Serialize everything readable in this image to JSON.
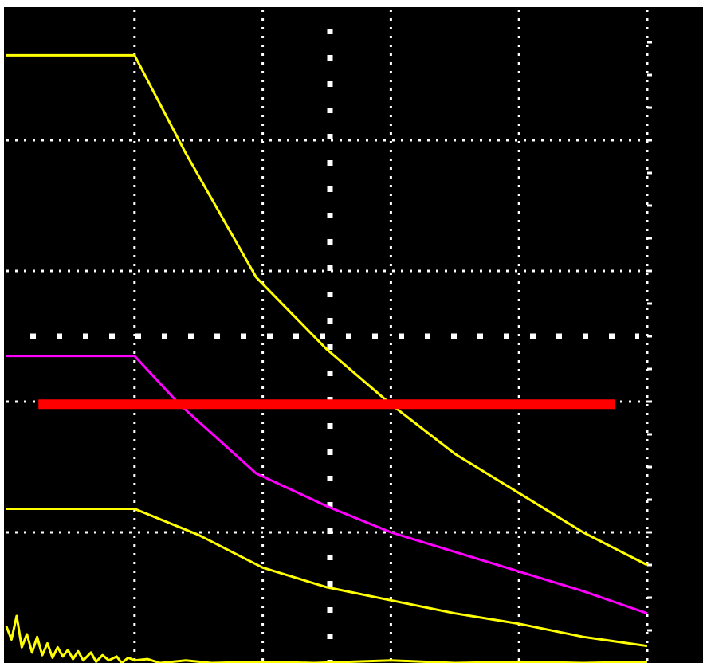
{
  "colors": {
    "background": "#000000",
    "frame": "#ffffff",
    "grid": "#ffffff",
    "upper_envelope": "#ffff00",
    "middle_envelope": "#ff00ff",
    "lower_envelope": "#ffff00",
    "measured_trace": "#ffff00",
    "marker_line": "#ff0000"
  },
  "chart_data": {
    "type": "line",
    "grid": true,
    "grid_divisions": {
      "x": 5,
      "y": 5
    },
    "xlim": [
      0,
      5
    ],
    "ylim": [
      0,
      5
    ],
    "x_unit": "division",
    "y_unit": "division",
    "reference_line": {
      "name": "marker-line",
      "y": 1.98,
      "x_start": 0.25,
      "x_end": 4.75
    },
    "series": [
      {
        "key": "upper-envelope",
        "color": "#ffff00",
        "points": [
          [
            0.0,
            4.65
          ],
          [
            1.0,
            4.65
          ],
          [
            1.4,
            3.9
          ],
          [
            1.95,
            2.95
          ],
          [
            2.5,
            2.4
          ],
          [
            3.0,
            1.98
          ],
          [
            3.5,
            1.6
          ],
          [
            4.0,
            1.3
          ],
          [
            4.5,
            1.0
          ],
          [
            5.0,
            0.75
          ]
        ]
      },
      {
        "key": "middle-envelope",
        "color": "#ff00ff",
        "points": [
          [
            0.0,
            2.35
          ],
          [
            1.0,
            2.35
          ],
          [
            1.35,
            1.98
          ],
          [
            1.95,
            1.45
          ],
          [
            2.5,
            1.2
          ],
          [
            3.0,
            1.0
          ],
          [
            3.5,
            0.85
          ],
          [
            4.0,
            0.7
          ],
          [
            4.5,
            0.55
          ],
          [
            5.0,
            0.38
          ]
        ]
      },
      {
        "key": "lower-envelope",
        "color": "#ffff00",
        "points": [
          [
            0.0,
            1.18
          ],
          [
            1.0,
            1.18
          ],
          [
            1.5,
            0.98
          ],
          [
            2.0,
            0.73
          ],
          [
            2.5,
            0.58
          ],
          [
            3.0,
            0.48
          ],
          [
            3.5,
            0.38
          ],
          [
            4.0,
            0.3
          ],
          [
            4.5,
            0.2
          ],
          [
            5.0,
            0.13
          ]
        ]
      },
      {
        "key": "measured-trace",
        "color": "#ffff00",
        "points": [
          [
            0.0,
            0.28
          ],
          [
            0.04,
            0.18
          ],
          [
            0.08,
            0.36
          ],
          [
            0.12,
            0.12
          ],
          [
            0.16,
            0.22
          ],
          [
            0.2,
            0.08
          ],
          [
            0.24,
            0.2
          ],
          [
            0.28,
            0.06
          ],
          [
            0.32,
            0.15
          ],
          [
            0.36,
            0.04
          ],
          [
            0.4,
            0.12
          ],
          [
            0.44,
            0.05
          ],
          [
            0.48,
            0.1
          ],
          [
            0.52,
            0.03
          ],
          [
            0.56,
            0.09
          ],
          [
            0.6,
            0.02
          ],
          [
            0.66,
            0.08
          ],
          [
            0.7,
            0.01
          ],
          [
            0.75,
            0.06
          ],
          [
            0.8,
            0.02
          ],
          [
            0.86,
            0.05
          ],
          [
            0.9,
            0.0
          ],
          [
            0.95,
            0.04
          ],
          [
            1.0,
            0.02
          ],
          [
            1.1,
            0.03
          ],
          [
            1.2,
            0.0
          ],
          [
            1.4,
            0.02
          ],
          [
            1.6,
            0.0
          ],
          [
            2.0,
            0.01
          ],
          [
            2.4,
            0.0
          ],
          [
            3.0,
            0.02
          ],
          [
            3.5,
            0.0
          ],
          [
            4.0,
            0.01
          ],
          [
            4.5,
            0.0
          ],
          [
            5.0,
            0.01
          ]
        ]
      }
    ]
  }
}
